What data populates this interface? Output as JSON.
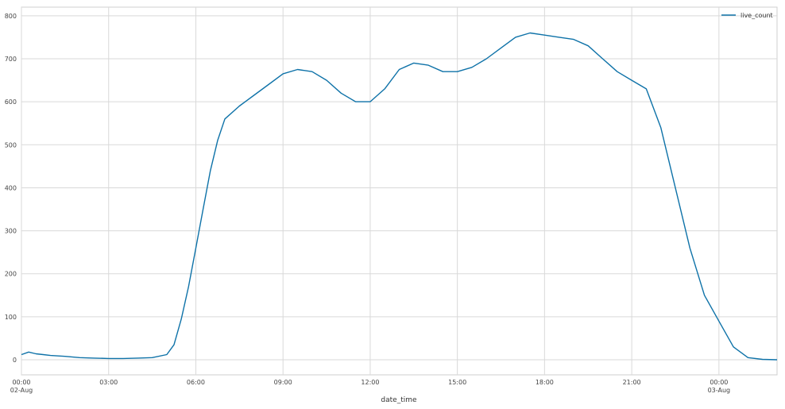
{
  "chart_data": {
    "type": "line",
    "title": "",
    "xlabel": "date_time",
    "ylabel": "",
    "ylim": [
      -35,
      820
    ],
    "x_range": [
      "2024-08-02T00:00",
      "2024-08-03T02:00"
    ],
    "yticks": [
      0,
      100,
      200,
      300,
      400,
      500,
      600,
      700,
      800
    ],
    "xticks": [
      {
        "x": "2024-08-02T00:00",
        "label": "00:00",
        "sublabel": "02-Aug"
      },
      {
        "x": "2024-08-02T03:00",
        "label": "03:00",
        "sublabel": ""
      },
      {
        "x": "2024-08-02T06:00",
        "label": "06:00",
        "sublabel": ""
      },
      {
        "x": "2024-08-02T09:00",
        "label": "09:00",
        "sublabel": ""
      },
      {
        "x": "2024-08-02T12:00",
        "label": "12:00",
        "sublabel": ""
      },
      {
        "x": "2024-08-02T15:00",
        "label": "15:00",
        "sublabel": ""
      },
      {
        "x": "2024-08-02T18:00",
        "label": "18:00",
        "sublabel": ""
      },
      {
        "x": "2024-08-02T21:00",
        "label": "21:00",
        "sublabel": ""
      },
      {
        "x": "2024-08-03T00:00",
        "label": "00:00",
        "sublabel": "03-Aug"
      }
    ],
    "grid": true,
    "legend_position": "top-right",
    "series": [
      {
        "name": "live_count",
        "color": "#0e72a8",
        "points": [
          [
            "2024-08-02T00:00",
            12
          ],
          [
            "2024-08-02T00:15",
            18
          ],
          [
            "2024-08-02T00:30",
            14
          ],
          [
            "2024-08-02T00:45",
            12
          ],
          [
            "2024-08-02T01:00",
            10
          ],
          [
            "2024-08-02T01:30",
            8
          ],
          [
            "2024-08-02T02:00",
            5
          ],
          [
            "2024-08-02T02:30",
            4
          ],
          [
            "2024-08-02T03:00",
            3
          ],
          [
            "2024-08-02T03:30",
            3
          ],
          [
            "2024-08-02T04:00",
            4
          ],
          [
            "2024-08-02T04:30",
            5
          ],
          [
            "2024-08-02T05:00",
            12
          ],
          [
            "2024-08-02T05:15",
            35
          ],
          [
            "2024-08-02T05:30",
            95
          ],
          [
            "2024-08-02T05:45",
            170
          ],
          [
            "2024-08-02T06:00",
            260
          ],
          [
            "2024-08-02T06:15",
            350
          ],
          [
            "2024-08-02T06:30",
            440
          ],
          [
            "2024-08-02T06:45",
            510
          ],
          [
            "2024-08-02T07:00",
            560
          ],
          [
            "2024-08-02T07:30",
            590
          ],
          [
            "2024-08-02T08:00",
            615
          ],
          [
            "2024-08-02T08:30",
            640
          ],
          [
            "2024-08-02T09:00",
            665
          ],
          [
            "2024-08-02T09:30",
            675
          ],
          [
            "2024-08-02T10:00",
            670
          ],
          [
            "2024-08-02T10:30",
            650
          ],
          [
            "2024-08-02T11:00",
            620
          ],
          [
            "2024-08-02T11:30",
            600
          ],
          [
            "2024-08-02T12:00",
            600
          ],
          [
            "2024-08-02T12:30",
            630
          ],
          [
            "2024-08-02T13:00",
            675
          ],
          [
            "2024-08-02T13:30",
            690
          ],
          [
            "2024-08-02T14:00",
            685
          ],
          [
            "2024-08-02T14:30",
            670
          ],
          [
            "2024-08-02T15:00",
            670
          ],
          [
            "2024-08-02T15:30",
            680
          ],
          [
            "2024-08-02T16:00",
            700
          ],
          [
            "2024-08-02T16:30",
            725
          ],
          [
            "2024-08-02T17:00",
            750
          ],
          [
            "2024-08-02T17:30",
            760
          ],
          [
            "2024-08-02T18:00",
            755
          ],
          [
            "2024-08-02T18:30",
            750
          ],
          [
            "2024-08-02T19:00",
            745
          ],
          [
            "2024-08-02T19:30",
            730
          ],
          [
            "2024-08-02T20:00",
            700
          ],
          [
            "2024-08-02T20:30",
            670
          ],
          [
            "2024-08-02T21:00",
            650
          ],
          [
            "2024-08-02T21:30",
            630
          ],
          [
            "2024-08-02T22:00",
            540
          ],
          [
            "2024-08-02T22:30",
            400
          ],
          [
            "2024-08-02T23:00",
            260
          ],
          [
            "2024-08-02T23:30",
            150
          ],
          [
            "2024-08-03T00:00",
            90
          ],
          [
            "2024-08-03T00:30",
            30
          ],
          [
            "2024-08-03T01:00",
            5
          ],
          [
            "2024-08-03T01:30",
            1
          ],
          [
            "2024-08-03T02:00",
            0
          ]
        ]
      }
    ]
  }
}
